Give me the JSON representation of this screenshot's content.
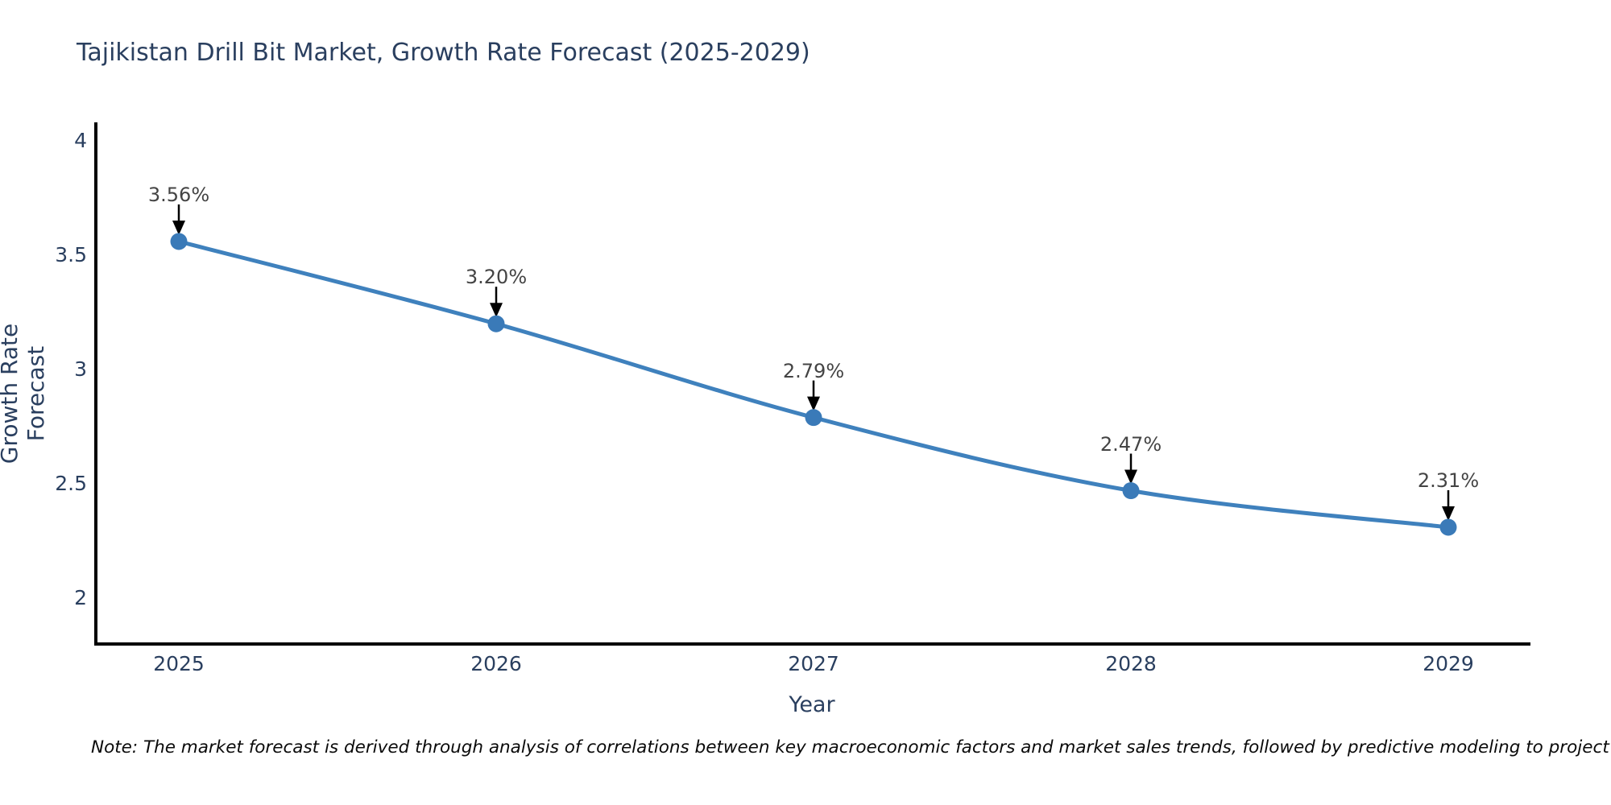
{
  "chart_data": {
    "type": "line",
    "title": "Tajikistan Drill Bit Market, Growth Rate Forecast (2025-2029)",
    "xlabel": "Year",
    "ylabel": "Growth Rate Forecast",
    "categories": [
      "2025",
      "2026",
      "2027",
      "2028",
      "2029"
    ],
    "values": [
      3.56,
      3.2,
      2.79,
      2.47,
      2.31
    ],
    "point_labels": [
      "3.56%",
      "3.20%",
      "2.79%",
      "2.47%",
      "2.31%"
    ],
    "yticks": [
      "4",
      "3.5",
      "3",
      "2.5",
      "2"
    ],
    "ylim": [
      1.79,
      4.08
    ],
    "grid": false,
    "legend": "none",
    "line_shape": "spline",
    "line_color": "#3f81bd",
    "marker_color": "#3a7ab8",
    "axis_color": "#000000",
    "label_color": "#2a3f5f",
    "annotation_color": "#444444"
  },
  "note": {
    "text": "Note: The market forecast is derived through analysis of correlations between key macroeconomic factors and market sales trends, followed by predictive modeling to project future sales"
  }
}
